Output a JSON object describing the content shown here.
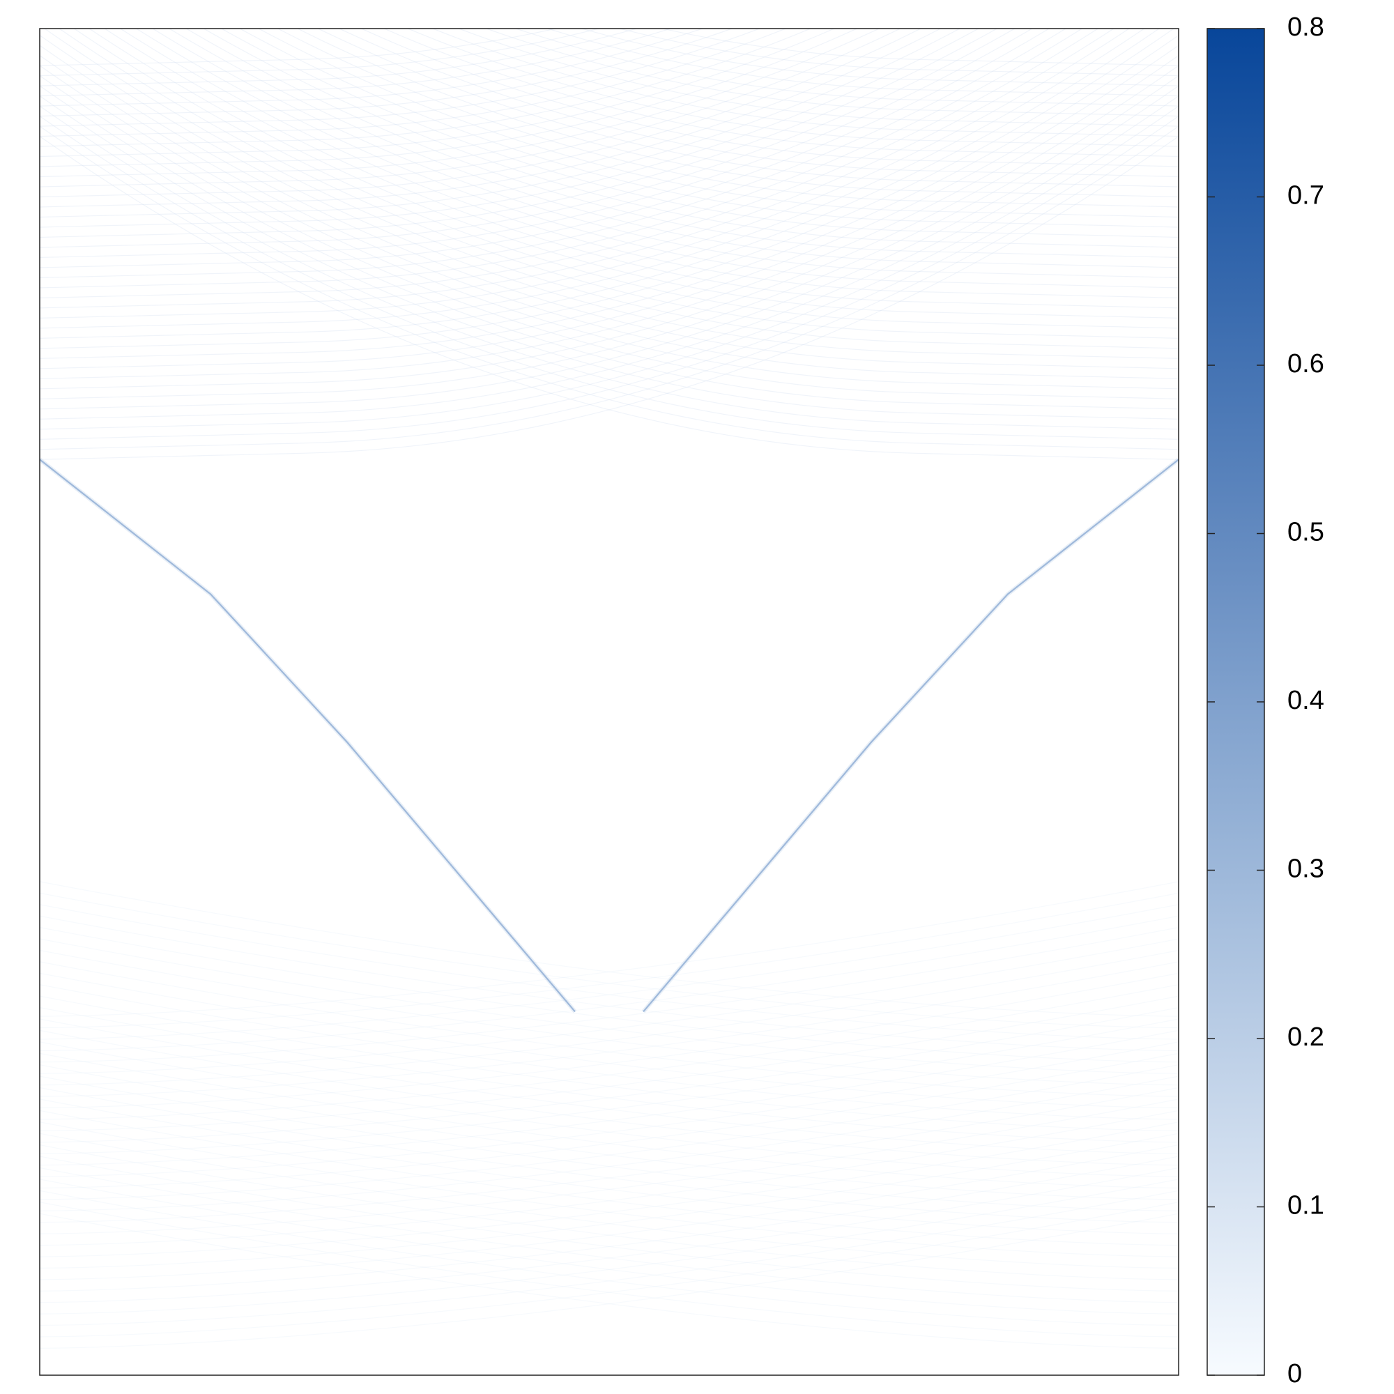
{
  "chart_data": {
    "type": "heatmap",
    "title": "",
    "xlabel": "",
    "ylabel": "",
    "colormap": "Blues",
    "colorbar": {
      "range": [
        0,
        0.8
      ],
      "ticks": [
        {
          "value": 0,
          "label": "0"
        },
        {
          "value": 0.1,
          "label": "0.1"
        },
        {
          "value": 0.2,
          "label": "0.2"
        },
        {
          "value": 0.3,
          "label": "0.3"
        },
        {
          "value": 0.4,
          "label": "0.4"
        },
        {
          "value": 0.5,
          "label": "0.5"
        },
        {
          "value": 0.6,
          "label": "0.6"
        },
        {
          "value": 0.7,
          "label": "0.7"
        },
        {
          "value": 0.8,
          "label": "0.8"
        }
      ],
      "color_low": "#f7fbff",
      "color_high": "#08469a"
    },
    "features": [
      {
        "name": "left-ridge",
        "peak_value": 0.32,
        "x": [
          0.0,
          0.15,
          0.27,
          0.38,
          0.47
        ],
        "y": [
          0.68,
          0.58,
          0.47,
          0.36,
          0.27
        ]
      },
      {
        "name": "right-ridge",
        "peak_value": 0.32,
        "x": [
          1.0,
          0.85,
          0.73,
          0.62,
          0.53
        ],
        "y": [
          0.68,
          0.58,
          0.47,
          0.36,
          0.27
        ]
      },
      {
        "name": "upper-fringes",
        "peak_value": 0.03
      },
      {
        "name": "lower-fringes",
        "peak_value": 0.015
      }
    ],
    "background_value": 0,
    "grid": false,
    "legend": "none"
  }
}
